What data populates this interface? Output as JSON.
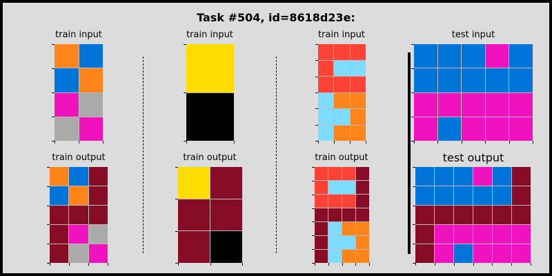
{
  "title": "Task #504, id=8618d23e:",
  "colors": {
    "0": "#000000",
    "1": "#0074D9",
    "2": "#FF4136",
    "3": "#2ECC40",
    "4": "#FFDC00",
    "5": "#AAAAAA",
    "6": "#F012BE",
    "7": "#FF851B",
    "8": "#7FDBFF",
    "9": "#870C25",
    "bg": "#DCDCDC"
  },
  "panels": [
    {
      "label": "train input",
      "grid": [
        [
          7,
          1
        ],
        [
          1,
          7
        ],
        [
          6,
          5
        ],
        [
          5,
          6
        ]
      ]
    },
    {
      "label": "train output",
      "grid": [
        [
          7,
          1,
          9
        ],
        [
          1,
          7,
          9
        ],
        [
          9,
          9,
          9
        ],
        [
          9,
          6,
          5
        ],
        [
          9,
          5,
          6
        ]
      ]
    },
    {
      "label": "train input",
      "grid": [
        [
          4
        ],
        [
          0
        ]
      ]
    },
    {
      "label": "train output",
      "grid": [
        [
          4,
          9
        ],
        [
          9,
          9
        ],
        [
          9,
          0
        ]
      ]
    },
    {
      "label": "train input",
      "grid": [
        [
          2,
          2,
          2
        ],
        [
          2,
          8,
          8
        ],
        [
          2,
          2,
          2
        ],
        [
          8,
          7,
          7
        ],
        [
          8,
          8,
          7
        ],
        [
          8,
          7,
          7
        ]
      ]
    },
    {
      "label": "train output",
      "grid": [
        [
          2,
          2,
          2,
          9
        ],
        [
          2,
          8,
          8,
          9
        ],
        [
          2,
          2,
          2,
          9
        ],
        [
          9,
          9,
          9,
          9
        ],
        [
          9,
          8,
          7,
          7
        ],
        [
          9,
          8,
          8,
          7
        ],
        [
          9,
          8,
          7,
          7
        ]
      ]
    },
    {
      "label": "test input",
      "grid": [
        [
          1,
          1,
          1,
          6,
          1
        ],
        [
          1,
          1,
          1,
          1,
          1
        ],
        [
          6,
          6,
          6,
          6,
          6
        ],
        [
          6,
          1,
          6,
          6,
          6
        ]
      ]
    },
    {
      "label": "test output",
      "grid": [
        [
          1,
          1,
          1,
          6,
          1,
          9
        ],
        [
          1,
          1,
          1,
          1,
          1,
          9
        ],
        [
          9,
          9,
          9,
          9,
          9,
          9
        ],
        [
          9,
          6,
          6,
          6,
          6,
          6
        ],
        [
          9,
          6,
          1,
          6,
          6,
          6
        ]
      ]
    }
  ]
}
